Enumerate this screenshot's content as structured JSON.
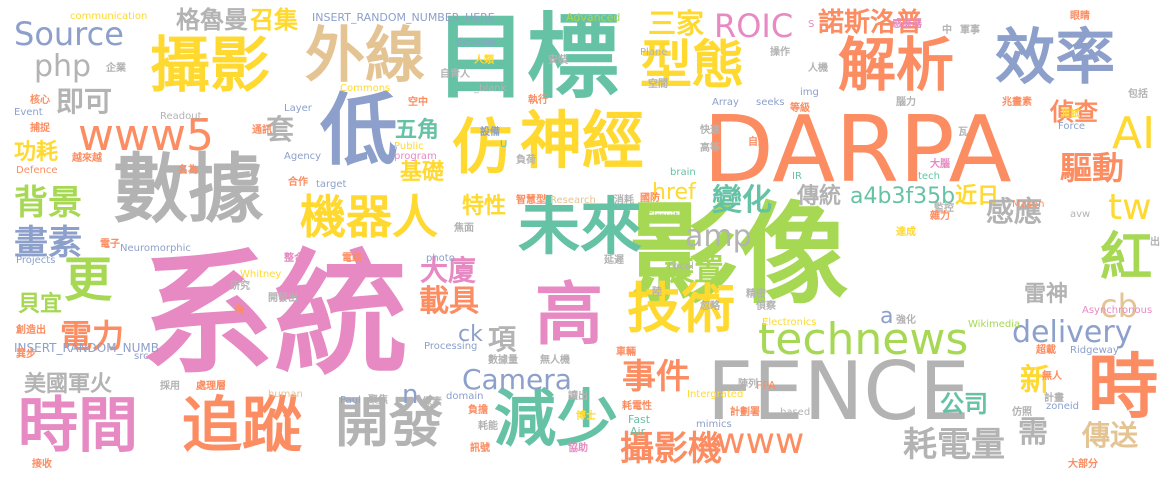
{
  "palette": {
    "pink": "#e78ac3",
    "green": "#a6d854",
    "orange": "#fc8d62",
    "blue": "#8da0cb",
    "teal": "#66c2a5",
    "yellow": "#ffd92f",
    "tan": "#e5c494",
    "gray": "#b3b3b3"
  },
  "words": [
    {
      "text": "系統",
      "color": "#e78ac3"
    },
    {
      "text": "影像",
      "color": "#a6d854"
    },
    {
      "text": "目標",
      "color": "#66c2a5"
    },
    {
      "text": "DARPA",
      "color": "#fc8d62"
    },
    {
      "text": "FENCE",
      "color": "#b3b3b3"
    },
    {
      "text": "數據",
      "color": "#b3b3b3"
    },
    {
      "text": "攝影",
      "color": "#ffd92f"
    },
    {
      "text": "外線",
      "color": "#e5c494"
    },
    {
      "text": "型態",
      "color": "#ffd92f"
    },
    {
      "text": "解析",
      "color": "#fc8d62"
    },
    {
      "text": "效率",
      "color": "#8da0cb"
    },
    {
      "text": "低",
      "color": "#8da0cb"
    },
    {
      "text": "仿",
      "color": "#ffd92f"
    },
    {
      "text": "神經",
      "color": "#ffd92f"
    },
    {
      "text": "未來",
      "color": "#66c2a5"
    },
    {
      "text": "高",
      "color": "#e78ac3"
    },
    {
      "text": "技術",
      "color": "#ffd92f"
    },
    {
      "text": "時間",
      "color": "#e78ac3"
    },
    {
      "text": "追蹤",
      "color": "#fc8d62"
    },
    {
      "text": "開發",
      "color": "#b3b3b3"
    },
    {
      "text": "減少",
      "color": "#66c2a5"
    },
    {
      "text": "時",
      "color": "#fc8d62"
    },
    {
      "text": "technews",
      "color": "#a6d854"
    },
    {
      "text": "www5",
      "color": "#fc8d62"
    },
    {
      "text": "www",
      "color": "#fc8d62"
    },
    {
      "text": "機器人",
      "color": "#ffd92f"
    },
    {
      "text": "AI",
      "color": "#ffd92f"
    },
    {
      "text": "紅",
      "color": "#a6d854"
    },
    {
      "text": "更",
      "color": "#a6d854"
    },
    {
      "text": "Source",
      "color": "#8da0cb"
    },
    {
      "text": "背景",
      "color": "#a6d854"
    },
    {
      "text": "畫素",
      "color": "#8da0cb"
    },
    {
      "text": "Camera",
      "color": "#8da0cb"
    },
    {
      "text": "delivery",
      "color": "#8da0cb"
    },
    {
      "text": "攝影機",
      "color": "#fc8d62"
    },
    {
      "text": "耗電量",
      "color": "#b3b3b3"
    },
    {
      "text": "事件",
      "color": "#fc8d62"
    },
    {
      "text": "裝置",
      "color": "#a6d854"
    },
    {
      "text": "載具",
      "color": "#fc8d62"
    },
    {
      "text": "電力",
      "color": "#fc8d62"
    },
    {
      "text": "ROIC",
      "color": "#e78ac3"
    },
    {
      "text": "諾斯洛普",
      "color": "#fc8d62"
    },
    {
      "text": "格魯曼",
      "color": "#b3b3b3"
    },
    {
      "text": "召集",
      "color": "#ffd92f"
    },
    {
      "text": "三家",
      "color": "#ffd92f"
    },
    {
      "text": "php",
      "color": "#b3b3b3"
    },
    {
      "text": "即可",
      "color": "#b3b3b3"
    },
    {
      "text": "套",
      "color": "#b3b3b3"
    },
    {
      "text": "五角",
      "color": "#66c2a5"
    },
    {
      "text": "功耗",
      "color": "#ffd92f"
    },
    {
      "text": "基礎",
      "color": "#ffd92f"
    },
    {
      "text": "特性",
      "color": "#ffd92f"
    },
    {
      "text": "變化",
      "color": "#66c2a5"
    },
    {
      "text": "傳統",
      "color": "#b3b3b3"
    },
    {
      "text": "a4b3f35b",
      "color": "#66c2a5"
    },
    {
      "text": "近日",
      "color": "#ffd92f"
    },
    {
      "text": "驅動",
      "color": "#fc8d62"
    },
    {
      "text": "感應",
      "color": "#b3b3b3"
    },
    {
      "text": "tw",
      "color": "#ffd92f"
    },
    {
      "text": "cb",
      "color": "#e5c494"
    },
    {
      "text": "amp",
      "color": "#b3b3b3"
    },
    {
      "text": "href",
      "color": "#ffd92f"
    },
    {
      "text": "偵查",
      "color": "#fc8d62"
    },
    {
      "text": "大廈",
      "color": "#e78ac3"
    },
    {
      "text": "項",
      "color": "#b3b3b3"
    },
    {
      "text": "貝宜",
      "color": "#a6d854"
    },
    {
      "text": "ck",
      "color": "#8da0cb"
    },
    {
      "text": "美國軍火",
      "color": "#b3b3b3"
    },
    {
      "text": "n",
      "color": "#8da0cb"
    },
    {
      "text": "新",
      "color": "#ffd92f"
    },
    {
      "text": "公司",
      "color": "#66c2a5"
    },
    {
      "text": "需",
      "color": "#b3b3b3"
    },
    {
      "text": "傳送",
      "color": "#e5c494"
    },
    {
      "text": "雷神",
      "color": "#b3b3b3"
    },
    {
      "text": "a",
      "color": "#8da0cb"
    },
    {
      "text": "INSERT_RANDOM_NUMBER_HERE",
      "color": "#8da0cb"
    },
    {
      "text": "INSERT_RANDOM_NUMB",
      "color": "#8da0cb"
    },
    {
      "text": "communication",
      "color": "#ffd92f"
    },
    {
      "text": "Advanced",
      "color": "#a6d854"
    },
    {
      "text": "develop",
      "color": "#8da0cb"
    },
    {
      "text": "Plane",
      "color": "#b3b3b3"
    },
    {
      "text": "人類",
      "color": "#ffd92f"
    },
    {
      "text": "_blank",
      "color": "#b3b3b3"
    },
    {
      "text": "安裝",
      "color": "#b3b3b3"
    },
    {
      "text": "Commons",
      "color": "#ffd92f"
    },
    {
      "text": "Readout",
      "color": "#b3b3b3"
    },
    {
      "text": "Layer",
      "color": "#8da0cb"
    },
    {
      "text": "Event",
      "color": "#8da0cb"
    },
    {
      "text": "Defence",
      "color": "#fc8d62"
    },
    {
      "text": "Agency",
      "color": "#8da0cb"
    },
    {
      "text": "Public",
      "color": "#ffd92f"
    },
    {
      "text": "program",
      "color": "#e78ac3"
    },
    {
      "text": "target",
      "color": "#8da0cb"
    },
    {
      "text": "brain",
      "color": "#66c2a5"
    },
    {
      "text": "Research",
      "color": "#e5c494"
    },
    {
      "text": "Circuit",
      "color": "#a6d854"
    },
    {
      "text": "Neuromorphic",
      "color": "#8da0cb"
    },
    {
      "text": "Projects",
      "color": "#8da0cb"
    },
    {
      "text": "Whitney",
      "color": "#ffd92f"
    },
    {
      "text": "photo",
      "color": "#8da0cb"
    },
    {
      "text": "Focal",
      "color": "#b3b3b3"
    },
    {
      "text": "Electronics",
      "color": "#ffd92f"
    },
    {
      "text": "Processing",
      "color": "#8da0cb"
    },
    {
      "text": "Fast",
      "color": "#66c2a5"
    },
    {
      "text": "Air",
      "color": "#66c2a5"
    },
    {
      "text": "mimics",
      "color": "#8da0cb"
    },
    {
      "text": "domain",
      "color": "#8da0cb"
    },
    {
      "text": "human",
      "color": "#e5c494"
    },
    {
      "text": "Paul",
      "color": "#8da0cb"
    },
    {
      "text": "src",
      "color": "#8da0cb"
    },
    {
      "text": "IR",
      "color": "#66c2a5"
    },
    {
      "text": "FPA",
      "color": "#fc8d62"
    },
    {
      "text": "based",
      "color": "#b3b3b3"
    },
    {
      "text": "zoneid",
      "color": "#8da0cb"
    },
    {
      "text": "Wikimedia",
      "color": "#a6d854"
    },
    {
      "text": "Asynchronous",
      "color": "#e78ac3"
    },
    {
      "text": "Ridgeway",
      "color": "#8da0cb"
    },
    {
      "text": "Mason",
      "color": "#fc8d62"
    },
    {
      "text": "avw",
      "color": "#b3b3b3"
    },
    {
      "text": "Force",
      "color": "#8da0cb"
    },
    {
      "text": "tech",
      "color": "#66c2a5"
    },
    {
      "text": "img",
      "color": "#8da0cb"
    },
    {
      "text": "Array",
      "color": "#8da0cb"
    },
    {
      "text": "seeks",
      "color": "#8da0cb"
    },
    {
      "text": "Intergrated",
      "color": "#ffd92f"
    },
    {
      "text": "U",
      "color": "#66c2a5"
    },
    {
      "text": "S",
      "color": "#e78ac3"
    },
    {
      "text": "企業",
      "color": "#b3b3b3"
    },
    {
      "text": "自青人",
      "color": "#b3b3b3"
    },
    {
      "text": "空間",
      "color": "#b3b3b3"
    },
    {
      "text": "操作",
      "color": "#b3b3b3"
    },
    {
      "text": "人機",
      "color": "#b3b3b3"
    },
    {
      "text": "感應器",
      "color": "#e78ac3"
    },
    {
      "text": "中",
      "color": "#b3b3b3"
    },
    {
      "text": "軍事",
      "color": "#b3b3b3"
    },
    {
      "text": "眼睛",
      "color": "#fc8d62"
    },
    {
      "text": "核心",
      "color": "#fc8d62"
    },
    {
      "text": "捕捉",
      "color": "#fc8d62"
    },
    {
      "text": "越來越",
      "color": "#fc8d62"
    },
    {
      "text": "通訊",
      "color": "#fc8d62"
    },
    {
      "text": "空中",
      "color": "#fc8d62"
    },
    {
      "text": "執行",
      "color": "#fc8d62"
    },
    {
      "text": "設備",
      "color": "#8da0cb"
    },
    {
      "text": "負荷",
      "color": "#b3b3b3"
    },
    {
      "text": "快速",
      "color": "#b3b3b3"
    },
    {
      "text": "高等",
      "color": "#b3b3b3"
    },
    {
      "text": "自動",
      "color": "#fc8d62"
    },
    {
      "text": "等級",
      "color": "#fc8d62"
    },
    {
      "text": "腦力",
      "color": "#b3b3b3"
    },
    {
      "text": "兆畫素",
      "color": "#fc8d62"
    },
    {
      "text": "包括",
      "color": "#b3b3b3"
    },
    {
      "text": "測試",
      "color": "#ffd92f"
    },
    {
      "text": "瓦",
      "color": "#b3b3b3"
    },
    {
      "text": "大腦",
      "color": "#e78ac3"
    },
    {
      "text": "名為",
      "color": "#fc8d62"
    },
    {
      "text": "合作",
      "color": "#fc8d62"
    },
    {
      "text": "智慧型",
      "color": "#fc8d62"
    },
    {
      "text": "國防",
      "color": "#fc8d62"
    },
    {
      "text": "消耗",
      "color": "#b3b3b3"
    },
    {
      "text": "焦面",
      "color": "#b3b3b3"
    },
    {
      "text": "監控",
      "color": "#b3b3b3"
    },
    {
      "text": "雜力",
      "color": "#fc8d62"
    },
    {
      "text": "達成",
      "color": "#ffd92f"
    },
    {
      "text": "出",
      "color": "#b3b3b3"
    },
    {
      "text": "電子",
      "color": "#fc8d62"
    },
    {
      "text": "整合",
      "color": "#e78ac3"
    },
    {
      "text": "電路",
      "color": "#fc8d62"
    },
    {
      "text": "延遲",
      "color": "#b3b3b3"
    },
    {
      "text": "研究",
      "color": "#b3b3b3"
    },
    {
      "text": "開發出",
      "color": "#b3b3b3"
    },
    {
      "text": "陸",
      "color": "#b3b3b3"
    },
    {
      "text": "精密",
      "color": "#b3b3b3"
    },
    {
      "text": "偵察",
      "color": "#b3b3b3"
    },
    {
      "text": "海",
      "color": "#fc8d62"
    },
    {
      "text": "忽略",
      "color": "#b3b3b3"
    },
    {
      "text": "強化",
      "color": "#b3b3b3"
    },
    {
      "text": "創造出",
      "color": "#fc8d62"
    },
    {
      "text": "異步",
      "color": "#fc8d62"
    },
    {
      "text": "數據量",
      "color": "#b3b3b3"
    },
    {
      "text": "無人機",
      "color": "#b3b3b3"
    },
    {
      "text": "車輛",
      "color": "#fc8d62"
    },
    {
      "text": "超載",
      "color": "#fc8d62"
    },
    {
      "text": "採用",
      "color": "#b3b3b3"
    },
    {
      "text": "處理層",
      "color": "#fc8d62"
    },
    {
      "text": "聚焦",
      "color": "#b3b3b3"
    },
    {
      "text": "像素",
      "color": "#b3b3b3"
    },
    {
      "text": "陣列",
      "color": "#b3b3b3"
    },
    {
      "text": "無人",
      "color": "#fc8d62"
    },
    {
      "text": "讀出",
      "color": "#b3b3b3"
    },
    {
      "text": "負擔",
      "color": "#fc8d62"
    },
    {
      "text": "耗電性",
      "color": "#fc8d62"
    },
    {
      "text": "計劃署",
      "color": "#fc8d62"
    },
    {
      "text": "計畫",
      "color": "#b3b3b3"
    },
    {
      "text": "仿照",
      "color": "#b3b3b3"
    },
    {
      "text": "耗能",
      "color": "#b3b3b3"
    },
    {
      "text": "接收",
      "color": "#fc8d62"
    },
    {
      "text": "訊號",
      "color": "#fc8d62"
    },
    {
      "text": "協助",
      "color": "#e78ac3"
    },
    {
      "text": "博士",
      "color": "#ffd92f"
    },
    {
      "text": "大部分",
      "color": "#fc8d62"
    }
  ]
}
